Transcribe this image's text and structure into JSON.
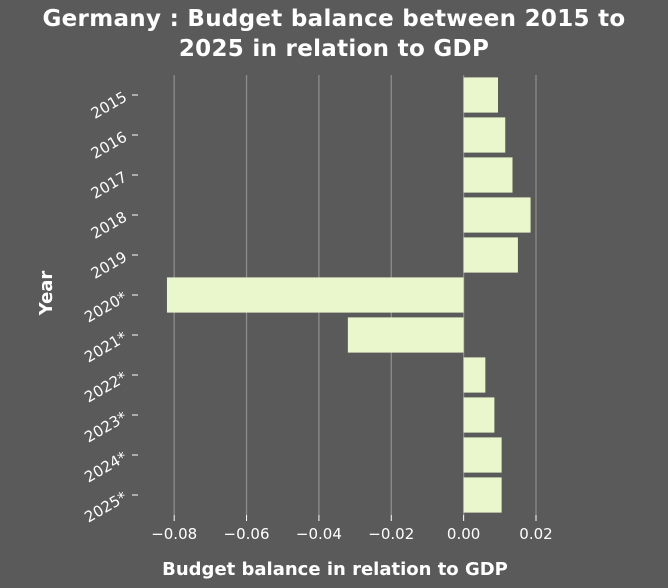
{
  "chart_data": {
    "type": "bar",
    "orientation": "horizontal",
    "title_lines": [
      "Germany : Budget balance between 2015 to",
      "2025 in relation to GDP"
    ],
    "xlabel": "Budget balance in relation to GDP",
    "ylabel": "Year",
    "categories": [
      "2015",
      "2016",
      "2017",
      "2018",
      "2019",
      "2020*",
      "2021*",
      "2022*",
      "2023*",
      "2024*",
      "2025*"
    ],
    "values": [
      0.0095,
      0.0115,
      0.0135,
      0.0185,
      0.015,
      -0.082,
      -0.032,
      0.006,
      0.0085,
      0.0105,
      0.0105
    ],
    "xlim": [
      -0.09,
      0.02
    ],
    "xticks": [
      -0.08,
      -0.06,
      -0.04,
      -0.02,
      0.0,
      0.02
    ],
    "xtick_labels": [
      "−0.08",
      "−0.06",
      "−0.04",
      "−0.02",
      "0.00",
      "0.02"
    ],
    "grid": true,
    "legend": "none",
    "colors": {
      "background": "#5a5a5a",
      "bar": "#eaf6cc",
      "grid": "#8c8c8c",
      "text": "#ffffff"
    }
  }
}
